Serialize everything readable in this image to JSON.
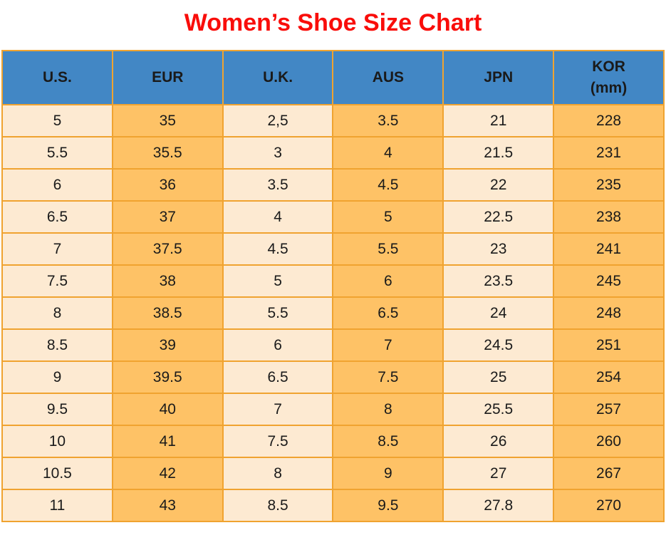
{
  "chart_data": {
    "type": "table",
    "title": "Women’s Shoe Size Chart",
    "columns": [
      "U.S.",
      "EUR",
      "U.K.",
      "AUS",
      "JPN",
      "KOR (mm)"
    ],
    "column_header_lines": [
      [
        "U.S."
      ],
      [
        "EUR"
      ],
      [
        "U.K."
      ],
      [
        "AUS"
      ],
      [
        "JPN"
      ],
      [
        "KOR",
        "(mm)"
      ]
    ],
    "rows": [
      [
        "5",
        "35",
        "2,5",
        "3.5",
        "21",
        "228"
      ],
      [
        "5.5",
        "35.5",
        "3",
        "4",
        "21.5",
        "231"
      ],
      [
        "6",
        "36",
        "3.5",
        "4.5",
        "22",
        "235"
      ],
      [
        "6.5",
        "37",
        "4",
        "5",
        "22.5",
        "238"
      ],
      [
        "7",
        "37.5",
        "4.5",
        "5.5",
        "23",
        "241"
      ],
      [
        "7.5",
        "38",
        "5",
        "6",
        "23.5",
        "245"
      ],
      [
        "8",
        "38.5",
        "5.5",
        "6.5",
        "24",
        "248"
      ],
      [
        "8.5",
        "39",
        "6",
        "7",
        "24.5",
        "251"
      ],
      [
        "9",
        "39.5",
        "6.5",
        "7.5",
        "25",
        "254"
      ],
      [
        "9.5",
        "40",
        "7",
        "8",
        "25.5",
        "257"
      ],
      [
        "10",
        "41",
        "7.5",
        "8.5",
        "26",
        "260"
      ],
      [
        "10.5",
        "42",
        "8",
        "9",
        "27",
        "267"
      ],
      [
        "11",
        "43",
        "8.5",
        "9.5",
        "27.8",
        "270"
      ]
    ],
    "layout": {
      "grid": true,
      "column_fill_pattern": [
        "cream",
        "orange",
        "cream",
        "orange",
        "cream",
        "orange"
      ]
    }
  },
  "styles": {
    "title_color": "#f90d0a",
    "header_bg": "#4287c5",
    "col_cream": "#fdead2",
    "col_orange": "#fec266",
    "border_color": "#f0a330",
    "text_color": "#1a1a1a"
  }
}
